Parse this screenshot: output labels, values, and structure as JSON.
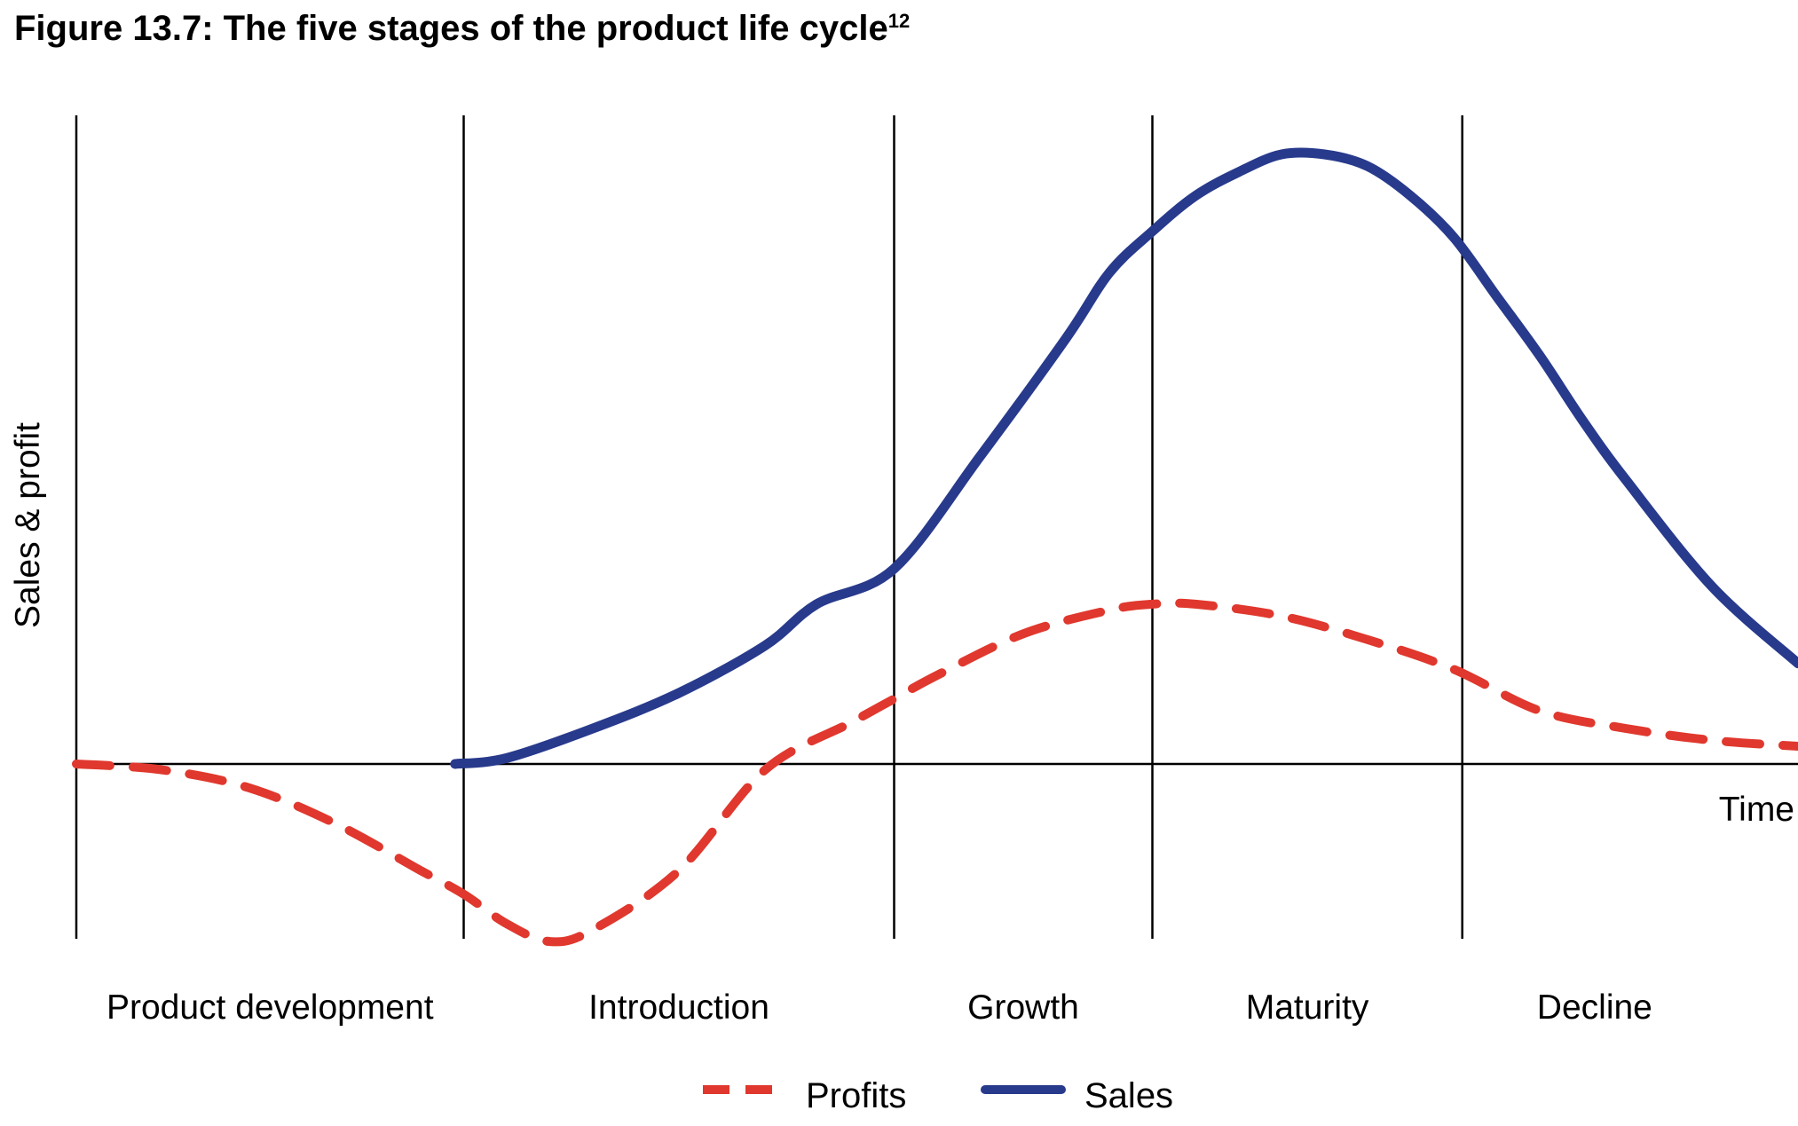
{
  "chart_data": {
    "type": "line",
    "title": "Figure 13.7: The five stages of the product life cycle",
    "title_superscript": "12",
    "xlabel": "Time",
    "ylabel": "Sales & profit",
    "stages": [
      "Product development",
      "Introduction",
      "Growth",
      "Maturity",
      "Decline"
    ],
    "x_range": [
      0,
      20
    ],
    "stage_boundaries": [
      0,
      4.5,
      9.5,
      12.5,
      16.1
    ],
    "y_range": [
      -0.3,
      1.1
    ],
    "grid": "vertical stage dividers",
    "legend_position": "bottom",
    "series": [
      {
        "name": "Profits",
        "style": "dashed",
        "color": "#e0382e",
        "points": [
          [
            0,
            0.0
          ],
          [
            1,
            -0.01
          ],
          [
            2,
            -0.04
          ],
          [
            3,
            -0.1
          ],
          [
            4,
            -0.18
          ],
          [
            4.5,
            -0.22
          ],
          [
            5,
            -0.27
          ],
          [
            5.5,
            -0.3
          ],
          [
            6,
            -0.28
          ],
          [
            7,
            -0.18
          ],
          [
            8,
            -0.01
          ],
          [
            9,
            0.07
          ],
          [
            9.5,
            0.11
          ],
          [
            10,
            0.15
          ],
          [
            11,
            0.22
          ],
          [
            12,
            0.26
          ],
          [
            12.5,
            0.27
          ],
          [
            13,
            0.27
          ],
          [
            14,
            0.25
          ],
          [
            15,
            0.21
          ],
          [
            16,
            0.16
          ],
          [
            17,
            0.09
          ],
          [
            18,
            0.06
          ],
          [
            19,
            0.04
          ],
          [
            20,
            0.03
          ]
        ]
      },
      {
        "name": "Sales",
        "style": "solid",
        "color": "#283a8c",
        "points": [
          [
            4.4,
            0.0
          ],
          [
            5,
            0.01
          ],
          [
            6,
            0.06
          ],
          [
            7,
            0.12
          ],
          [
            8,
            0.2
          ],
          [
            8.6,
            0.27
          ],
          [
            9.5,
            0.33
          ],
          [
            10.5,
            0.52
          ],
          [
            11.5,
            0.72
          ],
          [
            12,
            0.83
          ],
          [
            12.5,
            0.9
          ],
          [
            13,
            0.96
          ],
          [
            13.5,
            1.0
          ],
          [
            14,
            1.03
          ],
          [
            14.5,
            1.03
          ],
          [
            15,
            1.01
          ],
          [
            15.5,
            0.96
          ],
          [
            16,
            0.89
          ],
          [
            16.5,
            0.79
          ],
          [
            17,
            0.69
          ],
          [
            17.5,
            0.58
          ],
          [
            18,
            0.48
          ],
          [
            19,
            0.3
          ],
          [
            20,
            0.17
          ]
        ]
      }
    ]
  }
}
